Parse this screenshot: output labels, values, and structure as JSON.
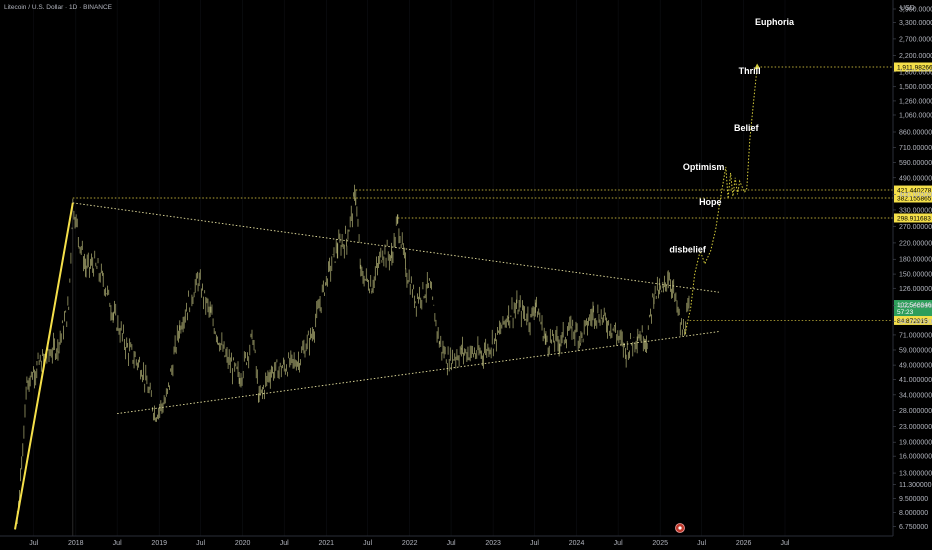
{
  "header": {
    "title": "Litecoin / U.S. Dollar · 1D · BINANCE",
    "currency": "USD"
  },
  "colors": {
    "background": "#000000",
    "candle": "#b9b97a",
    "trend": "#e8e3a0",
    "impulse": "#f5e04a",
    "path": "#d9d03c",
    "badge_yellow": "#f5e04a",
    "badge_green": "#2e9e5b",
    "axis_text": "#b2b5be"
  },
  "chart_data": {
    "type": "line",
    "y_scale": "log",
    "ylim": [
      6.3,
      3900
    ],
    "xlim": [
      "2017-04-01",
      "2026-12-31"
    ],
    "y_ticks": [
      "3,900.000000",
      "3,300.000000",
      "2,700.000000",
      "2,200.000000",
      "1,800.000000",
      "1,500.000000",
      "1,260.000000",
      "1,060.000000",
      "860.000000",
      "710.000000",
      "590.000000",
      "490.000000",
      "400.000000",
      "330.000000",
      "270.000000",
      "220.000000",
      "180.000000",
      "150.000000",
      "126.000000",
      "102.000000",
      "84.000000",
      "71.000000",
      "59.000000",
      "49.000000",
      "41.000000",
      "34.000000",
      "28.000000",
      "23.000000",
      "19.000000",
      "16.000000",
      "13.000000",
      "11.300000",
      "9.500000",
      "8.000000",
      "6.750000"
    ],
    "x_ticks": [
      {
        "label": "Jul",
        "date": "2017-07-01"
      },
      {
        "label": "2018",
        "date": "2018-01-01"
      },
      {
        "label": "Jul",
        "date": "2018-07-01"
      },
      {
        "label": "2019",
        "date": "2019-01-01"
      },
      {
        "label": "Jul",
        "date": "2019-07-01"
      },
      {
        "label": "2020",
        "date": "2020-01-01"
      },
      {
        "label": "Jul",
        "date": "2020-07-01"
      },
      {
        "label": "2021",
        "date": "2021-01-01"
      },
      {
        "label": "Jul",
        "date": "2021-07-01"
      },
      {
        "label": "2022",
        "date": "2022-01-01"
      },
      {
        "label": "Jul",
        "date": "2022-07-01"
      },
      {
        "label": "2023",
        "date": "2023-01-01"
      },
      {
        "label": "Jul",
        "date": "2023-07-01"
      },
      {
        "label": "2024",
        "date": "2024-01-01"
      },
      {
        "label": "Jul",
        "date": "2024-07-01"
      },
      {
        "label": "2025",
        "date": "2025-01-01"
      },
      {
        "label": "Jul",
        "date": "2025-07-01"
      },
      {
        "label": "2026",
        "date": "2026-01-01"
      },
      {
        "label": "Jul",
        "date": "2026-07-01"
      }
    ],
    "price_series": {
      "x": [
        "2017-06-01",
        "2017-07-15",
        "2017-09-01",
        "2017-10-15",
        "2017-12-01",
        "2017-12-19",
        "2018-01-15",
        "2018-02-15",
        "2018-03-20",
        "2018-05-01",
        "2018-06-15",
        "2018-08-15",
        "2018-10-15",
        "2018-12-15",
        "2019-02-01",
        "2019-04-01",
        "2019-06-20",
        "2019-08-15",
        "2019-10-15",
        "2019-12-20",
        "2020-02-15",
        "2020-03-13",
        "2020-05-01",
        "2020-07-01",
        "2020-09-01",
        "2020-11-01",
        "2021-01-01",
        "2021-02-20",
        "2021-04-01",
        "2021-05-10",
        "2021-06-01",
        "2021-07-20",
        "2021-09-05",
        "2021-10-15",
        "2021-11-10",
        "2021-12-15",
        "2022-01-25",
        "2022-03-28",
        "2022-05-12",
        "2022-06-18",
        "2022-08-15",
        "2022-11-10",
        "2023-01-15",
        "2023-03-10",
        "2023-04-15",
        "2023-06-15",
        "2023-07-05",
        "2023-08-20",
        "2023-10-20",
        "2023-12-15",
        "2024-01-20",
        "2024-03-15",
        "2024-05-01",
        "2024-06-15",
        "2024-08-05",
        "2024-09-25",
        "2024-11-05",
        "2024-12-05",
        "2025-01-15",
        "2025-02-05",
        "2025-03-01",
        "2025-04-08",
        "2025-05-10"
      ],
      "y": [
        40,
        48,
        56,
        62,
        100,
        365,
        230,
        160,
        170,
        140,
        92,
        60,
        48,
        27,
        32,
        80,
        140,
        90,
        55,
        42,
        70,
        32,
        45,
        48,
        52,
        72,
        140,
        210,
        230,
        405,
        150,
        130,
        200,
        185,
        290,
        160,
        110,
        130,
        64,
        52,
        58,
        56,
        68,
        92,
        100,
        86,
        105,
        66,
        66,
        78,
        68,
        95,
        86,
        76,
        58,
        72,
        68,
        120,
        120,
        150,
        120,
        72,
        100
      ]
    },
    "trendlines": [
      {
        "name": "upper",
        "x": [
          "2017-12-19",
          "2025-09-15"
        ],
        "y": [
          360,
          120
        ]
      },
      {
        "name": "lower",
        "x": [
          "2018-07-01",
          "2025-09-15"
        ],
        "y": [
          27,
          74
        ]
      },
      {
        "name": "impulse",
        "x": [
          "2017-04-10",
          "2017-12-19"
        ],
        "y": [
          6.5,
          360
        ]
      }
    ],
    "projection_path": {
      "x": [
        "2025-04-20",
        "2025-05-15",
        "2025-06-01",
        "2025-06-25",
        "2025-07-15",
        "2025-08-10",
        "2025-09-01",
        "2025-09-20",
        "2025-10-15",
        "2025-10-25",
        "2025-11-05",
        "2025-11-15",
        "2025-11-25",
        "2025-12-05",
        "2025-12-15",
        "2026-01-05",
        "2026-01-15",
        "2026-01-28",
        "2026-02-15",
        "2026-03-01"
      ],
      "y": [
        72,
        100,
        150,
        200,
        170,
        200,
        260,
        370,
        560,
        380,
        520,
        390,
        490,
        400,
        470,
        410,
        430,
        780,
        1300,
        1900
      ]
    },
    "horizontal_levels": [
      {
        "label": "421.440278",
        "value": 421.44,
        "from": "2021-05-10"
      },
      {
        "label": "382.155865",
        "value": 382.16,
        "from": "2017-12-19"
      },
      {
        "label": "298.911683",
        "value": 298.91,
        "from": "2021-11-10"
      },
      {
        "label": "1,911.982666",
        "value": 1911.98,
        "from": "2026-03-01"
      },
      {
        "label": "84.872915",
        "value": 84.87,
        "from": "2025-05-10"
      }
    ],
    "current_price": {
      "label": "102.546846",
      "sub": "57:23",
      "value": 102.55
    },
    "annotations": [
      {
        "text": "Euphoria",
        "x": "2026-02-20",
        "y": 3200
      },
      {
        "text": "Thrill",
        "x": "2025-12-10",
        "y": 1750
      },
      {
        "text": "Belief",
        "x": "2025-11-20",
        "y": 870
      },
      {
        "text": "Optimism",
        "x": "2025-04-10",
        "y": 540
      },
      {
        "text": "Hope",
        "x": "2025-06-20",
        "y": 350
      },
      {
        "text": "disbelief",
        "x": "2025-02-10",
        "y": 195
      }
    ]
  }
}
